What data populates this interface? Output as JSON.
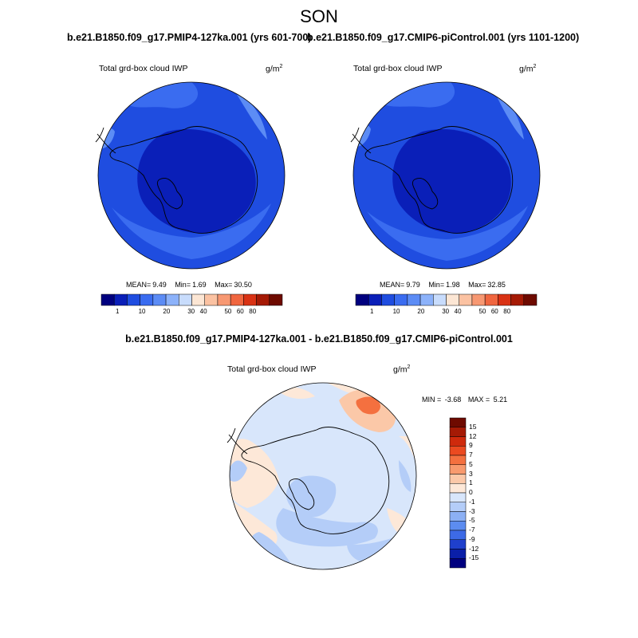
{
  "figure": {
    "season": "SON",
    "top_left": {
      "title": "b.e21.B1850.f09_g17.PMIP4-127ka.001 (yrs 601-700)",
      "variable": "Total grd-box cloud IWP",
      "units": "g/m",
      "units_exp": "2",
      "mean_label": "MEAN=",
      "mean": "9.49",
      "min_label": "Min=",
      "min": "1.69",
      "max_label": "Max=",
      "max": "30.50"
    },
    "top_right": {
      "title": "b.e21.B1850.f09_g17.CMIP6-piControl.001 (yrs 1101-1200)",
      "variable": "Total grd-box cloud IWP",
      "units": "g/m",
      "units_exp": "2",
      "mean_label": "MEAN=",
      "mean": "9.79",
      "min_label": "Min=",
      "min": "1.98",
      "max_label": "Max=",
      "max": "32.85"
    },
    "diff": {
      "title": "b.e21.B1850.f09_g17.PMIP4-127ka.001 - b.e21.B1850.f09_g17.CMIP6-piControl.001",
      "variable": "Total grd-box cloud IWP",
      "units": "g/m",
      "units_exp": "2",
      "min_label": "MIN =",
      "min": "-3.68",
      "max_label": "MAX =",
      "max": "5.21"
    }
  },
  "colorbar_top": {
    "colors": [
      "#00007f",
      "#0a1fb8",
      "#1f4de0",
      "#3a6cf0",
      "#5c8cf5",
      "#8cb2fa",
      "#c8dcfc",
      "#fce6d4",
      "#fbc2a2",
      "#f79872",
      "#f0663f",
      "#d93214",
      "#a51a05",
      "#6e0a00"
    ],
    "labels": [
      "1",
      "10",
      "20",
      "30",
      "40",
      "50",
      "60",
      "80"
    ]
  },
  "colorbar_diff": {
    "colors": [
      "#6e0a00",
      "#a51a05",
      "#cf2a0c",
      "#eb4a20",
      "#f4703f",
      "#f89a6e",
      "#fbc8a8",
      "#fde8d8",
      "#d8e6fb",
      "#b4cdf8",
      "#8cb0f4",
      "#5c8cf0",
      "#3d6ae6",
      "#1f40cc",
      "#0a1fa8",
      "#00007f"
    ],
    "labels": [
      "15",
      "12",
      "9",
      "7",
      "5",
      "3",
      "1",
      "0",
      "-1",
      "-3",
      "-5",
      "-7",
      "-9",
      "-12",
      "-15"
    ]
  },
  "colors": {
    "ocean_top": "#1f4de0",
    "polar_low": "#0a1fb8",
    "mid_ring": "#3a6cf0",
    "light_patch": "#5c8cf5",
    "diff_base": "#d8e6fb",
    "diff_pos_light": "#fde8d8",
    "diff_pos_mid": "#fbc8a8",
    "diff_pos_strong": "#f4703f",
    "diff_neg": "#b4cdf8"
  },
  "map_features": [
    "Antarctica coastline",
    "Antarctic Peninsula",
    "South America tip"
  ]
}
